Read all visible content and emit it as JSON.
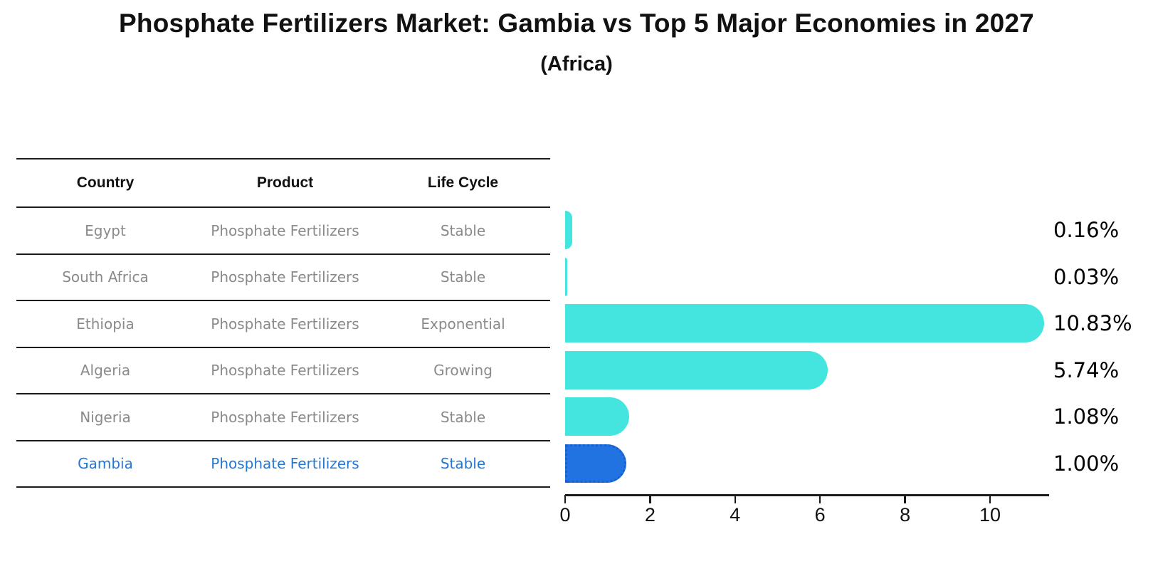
{
  "title": "Phosphate Fertilizers Market: Gambia vs Top 5 Major Economies in 2027",
  "subtitle": "(Africa)",
  "table": {
    "headers": [
      "Country",
      "Product",
      "Life Cycle"
    ],
    "rows": [
      {
        "country": "Egypt",
        "product": "Phosphate Fertilizers",
        "life_cycle": "Stable",
        "highlighted": false
      },
      {
        "country": "South Africa",
        "product": "Phosphate Fertilizers",
        "life_cycle": "Stable",
        "highlighted": false
      },
      {
        "country": "Ethiopia",
        "product": "Phosphate Fertilizers",
        "life_cycle": "Exponential",
        "highlighted": false
      },
      {
        "country": "Algeria",
        "product": "Phosphate Fertilizers",
        "life_cycle": "Growing",
        "highlighted": false
      },
      {
        "country": "Nigeria",
        "product": "Phosphate Fertilizers",
        "life_cycle": "Stable",
        "highlighted": false
      },
      {
        "country": "Gambia",
        "product": "Phosphate Fertilizers",
        "life_cycle": "Stable",
        "highlighted": true
      }
    ]
  },
  "chart_data": {
    "type": "bar",
    "orientation": "horizontal",
    "title": "Phosphate Fertilizers Market: Gambia vs Top 5 Major Economies in 2027 (Africa)",
    "categories": [
      "Egypt",
      "South Africa",
      "Ethiopia",
      "Algeria",
      "Nigeria",
      "Gambia"
    ],
    "values": [
      0.16,
      0.03,
      10.83,
      5.74,
      1.08,
      1.0
    ],
    "value_labels": [
      "0.16%",
      "0.03%",
      "10.83%",
      "5.74%",
      "1.08%",
      "1.00%"
    ],
    "x_ticks": [
      0,
      2,
      4,
      6,
      8,
      10
    ],
    "xlim": [
      0,
      11.4
    ],
    "xlabel": "",
    "ylabel": "",
    "grid": false,
    "legend": null,
    "bar_color": "#44e5df",
    "highlight_color": "#2173e2",
    "highlight_index": 5
  },
  "colors": {
    "text_black": "#111111",
    "text_gray": "#8a8a8a",
    "highlight_text_blue": "#2478d4",
    "bar_cyan": "#44e5df",
    "bar_blue": "#2173e2",
    "bar_blue_border": "#1a5fd0",
    "axis_line": "#1a1a1a"
  }
}
